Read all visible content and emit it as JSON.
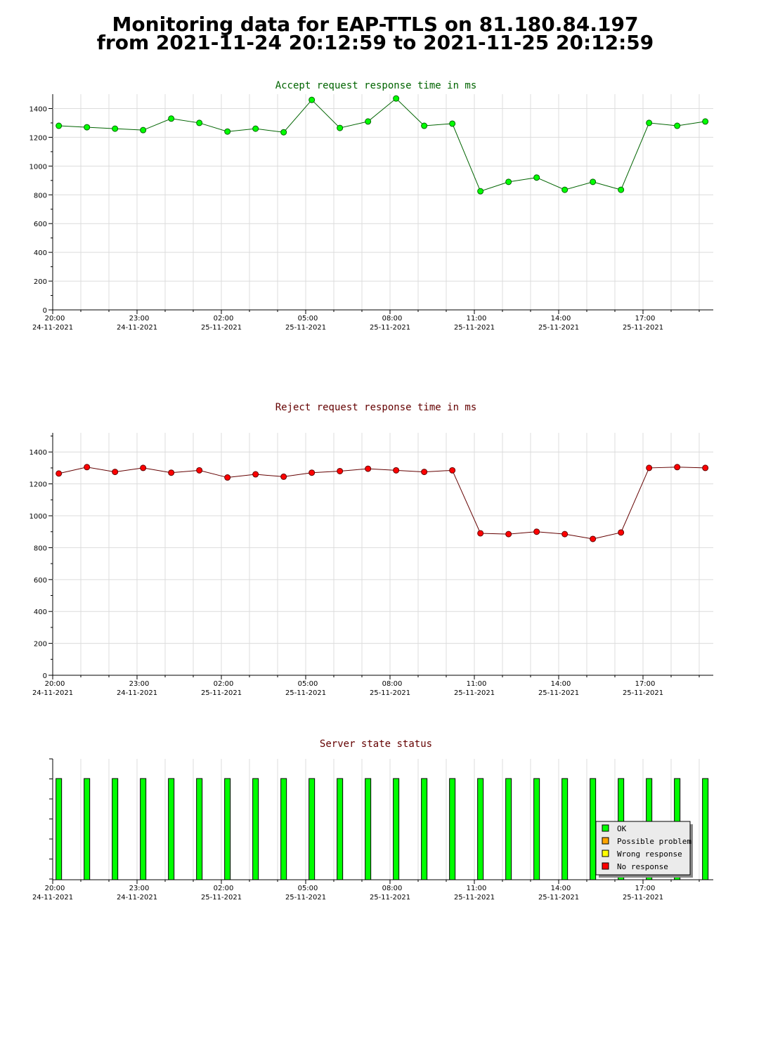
{
  "page": {
    "title_line1": "Monitoring data for EAP-TTLS on 81.180.84.197",
    "title_line2": "from 2021-11-24 20:12:59 to 2021-11-25 20:12:59"
  },
  "colors": {
    "accept_marker": "#00ff00",
    "accept_line": "#006400",
    "accept_title": "#006400",
    "reject_marker": "#ff0000",
    "reject_line": "#640000",
    "reject_title": "#640000",
    "status_title": "#640000",
    "grid": "#dcdcdc",
    "ok": "#00ff00",
    "possible_problem": "#ffa500",
    "wrong_response": "#ffff00",
    "no_response": "#ff0000"
  },
  "chart_data": [
    {
      "id": "accept",
      "type": "line",
      "title": "Accept request response time in ms",
      "ylim": [
        0,
        1500
      ],
      "yticks": [
        0,
        200,
        400,
        600,
        800,
        1000,
        1200,
        1400
      ],
      "xlim": [
        "2021-11-24 20:00",
        "2021-11-25 19:30"
      ],
      "xticks": [
        {
          "time": "20:00",
          "date": "24-11-2021"
        },
        {
          "time": "23:00",
          "date": "24-11-2021"
        },
        {
          "time": "02:00",
          "date": "25-11-2021"
        },
        {
          "time": "05:00",
          "date": "25-11-2021"
        },
        {
          "time": "08:00",
          "date": "25-11-2021"
        },
        {
          "time": "11:00",
          "date": "25-11-2021"
        },
        {
          "time": "14:00",
          "date": "25-11-2021"
        },
        {
          "time": "17:00",
          "date": "25-11-2021"
        }
      ],
      "grid": true,
      "x": [
        "20:13",
        "21:13",
        "22:13",
        "23:13",
        "00:13",
        "01:13",
        "02:13",
        "03:13",
        "04:13",
        "05:13",
        "06:13",
        "07:13",
        "08:13",
        "09:13",
        "10:13",
        "11:13",
        "12:13",
        "13:13",
        "14:13",
        "15:13",
        "16:13",
        "17:13",
        "18:13",
        "19:13"
      ],
      "values": [
        1280,
        1270,
        1260,
        1250,
        1330,
        1300,
        1240,
        1260,
        1235,
        1460,
        1265,
        1310,
        1470,
        1280,
        1295,
        825,
        890,
        920,
        835,
        890,
        835,
        1300,
        1280,
        1310
      ]
    },
    {
      "id": "reject",
      "type": "line",
      "title": "Reject request response time in ms",
      "ylim": [
        0,
        1520
      ],
      "yticks": [
        0,
        200,
        400,
        600,
        800,
        1000,
        1200,
        1400
      ],
      "xlim": [
        "2021-11-24 20:00",
        "2021-11-25 19:30"
      ],
      "xticks": [
        {
          "time": "20:00",
          "date": "24-11-2021"
        },
        {
          "time": "23:00",
          "date": "24-11-2021"
        },
        {
          "time": "02:00",
          "date": "25-11-2021"
        },
        {
          "time": "05:00",
          "date": "25-11-2021"
        },
        {
          "time": "08:00",
          "date": "25-11-2021"
        },
        {
          "time": "11:00",
          "date": "25-11-2021"
        },
        {
          "time": "14:00",
          "date": "25-11-2021"
        },
        {
          "time": "17:00",
          "date": "25-11-2021"
        }
      ],
      "grid": true,
      "x": [
        "20:13",
        "21:13",
        "22:13",
        "23:13",
        "00:13",
        "01:13",
        "02:13",
        "03:13",
        "04:13",
        "05:13",
        "06:13",
        "07:13",
        "08:13",
        "09:13",
        "10:13",
        "11:13",
        "12:13",
        "13:13",
        "14:13",
        "15:13",
        "16:13",
        "17:13",
        "18:13",
        "19:13"
      ],
      "values": [
        1265,
        1305,
        1275,
        1300,
        1270,
        1285,
        1240,
        1260,
        1245,
        1270,
        1280,
        1295,
        1285,
        1275,
        1285,
        890,
        885,
        900,
        885,
        855,
        895,
        1300,
        1305,
        1300
      ]
    },
    {
      "id": "status",
      "type": "bar",
      "title": "Server state status",
      "xlim": [
        "2021-11-24 20:00",
        "2021-11-25 19:30"
      ],
      "xticks": [
        {
          "time": "20:00",
          "date": "24-11-2021"
        },
        {
          "time": "23:00",
          "date": "24-11-2021"
        },
        {
          "time": "02:00",
          "date": "25-11-2021"
        },
        {
          "time": "05:00",
          "date": "25-11-2021"
        },
        {
          "time": "08:00",
          "date": "25-11-2021"
        },
        {
          "time": "11:00",
          "date": "25-11-2021"
        },
        {
          "time": "14:00",
          "date": "25-11-2021"
        },
        {
          "time": "17:00",
          "date": "25-11-2021"
        }
      ],
      "x": [
        "20:13",
        "21:13",
        "22:13",
        "23:13",
        "00:13",
        "01:13",
        "02:13",
        "03:13",
        "04:13",
        "05:13",
        "06:13",
        "07:13",
        "08:13",
        "09:13",
        "10:13",
        "11:13",
        "12:13",
        "13:13",
        "14:13",
        "15:13",
        "16:13",
        "17:13",
        "18:13",
        "19:13"
      ],
      "states": [
        "OK",
        "OK",
        "OK",
        "OK",
        "OK",
        "OK",
        "OK",
        "OK",
        "OK",
        "OK",
        "OK",
        "OK",
        "OK",
        "OK",
        "OK",
        "OK",
        "OK",
        "OK",
        "OK",
        "OK",
        "OK",
        "OK",
        "OK",
        "OK"
      ],
      "legend": {
        "position": "bottom-right",
        "entries": [
          {
            "label": "OK",
            "color": "#00ff00"
          },
          {
            "label": "Possible problem",
            "color": "#ffa500"
          },
          {
            "label": "Wrong response",
            "color": "#ffff00"
          },
          {
            "label": "No response",
            "color": "#ff0000"
          }
        ]
      }
    }
  ]
}
